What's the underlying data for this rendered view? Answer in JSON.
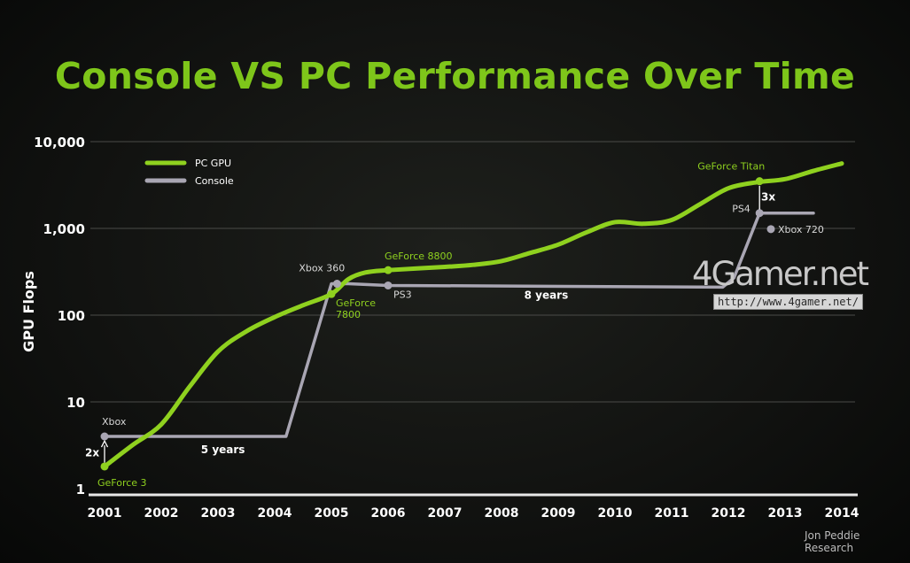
{
  "chart_data": {
    "type": "line",
    "title": "Console VS PC Performance Over Time",
    "ylabel": "GPU Flops",
    "xlabel": "",
    "yscale": "log",
    "ylim": [
      1,
      10000
    ],
    "yticks": [
      "1",
      "10",
      "100",
      "1,000",
      "10,000"
    ],
    "ytick_values": [
      1,
      10,
      100,
      1000,
      10000
    ],
    "xticks": [
      "2001",
      "2002",
      "2003",
      "2004",
      "2005",
      "2006",
      "2007",
      "2008",
      "2009",
      "2010",
      "2011",
      "2012",
      "2013",
      "2014"
    ],
    "grid": true,
    "legend_position": "top-left",
    "series": [
      {
        "name": "PC GPU",
        "color": "#8fd11f",
        "points": [
          [
            2001.0,
            1.8
          ],
          [
            2001.5,
            3.2
          ],
          [
            2002.0,
            5.5
          ],
          [
            2002.5,
            15
          ],
          [
            2003.0,
            38
          ],
          [
            2003.5,
            65
          ],
          [
            2004.0,
            95
          ],
          [
            2004.5,
            130
          ],
          [
            2005.0,
            175
          ],
          [
            2005.3,
            260
          ],
          [
            2005.6,
            310
          ],
          [
            2006.0,
            330
          ],
          [
            2007.0,
            360
          ],
          [
            2007.5,
            380
          ],
          [
            2008.0,
            420
          ],
          [
            2008.5,
            520
          ],
          [
            2009.0,
            650
          ],
          [
            2009.5,
            900
          ],
          [
            2010.0,
            1180
          ],
          [
            2010.5,
            1130
          ],
          [
            2011.0,
            1250
          ],
          [
            2011.5,
            1900
          ],
          [
            2012.0,
            2900
          ],
          [
            2012.5,
            3400
          ],
          [
            2013.0,
            3700
          ],
          [
            2013.5,
            4600
          ],
          [
            2014.0,
            5600
          ]
        ]
      },
      {
        "name": "Console",
        "color": "#a9a6b3",
        "points": [
          [
            2001.0,
            4
          ],
          [
            2004.2,
            4
          ],
          [
            2005.0,
            230
          ],
          [
            2005.3,
            230
          ],
          [
            2006.0,
            220
          ],
          [
            2011.9,
            210
          ],
          [
            2012.1,
            270
          ],
          [
            2012.55,
            1500
          ],
          [
            2013.5,
            1500
          ]
        ]
      }
    ],
    "markers": [
      {
        "series": "PC GPU",
        "x": 2001.0,
        "y": 1.8,
        "label": "GeForce 3"
      },
      {
        "series": "PC GPU",
        "x": 2005.0,
        "y": 175,
        "label": "GeForce 7800"
      },
      {
        "series": "PC GPU",
        "x": 2006.0,
        "y": 330,
        "label": "GeForce 8800"
      },
      {
        "series": "PC GPU",
        "x": 2012.55,
        "y": 3500,
        "label": "GeForce Titan"
      },
      {
        "series": "Console",
        "x": 2001.0,
        "y": 4,
        "label": "Xbox"
      },
      {
        "series": "Console",
        "x": 2005.1,
        "y": 230,
        "label": "Xbox 360"
      },
      {
        "series": "Console",
        "x": 2006.0,
        "y": 220,
        "label": "PS3"
      },
      {
        "series": "Console",
        "x": 2012.55,
        "y": 1500,
        "label": "PS4"
      },
      {
        "series": "Console",
        "x": 2012.75,
        "y": 980,
        "label": "Xbox 720"
      }
    ],
    "annotations": [
      {
        "text": "2x",
        "x": 2001.0,
        "y": 2.6
      },
      {
        "text": "5 years",
        "x": 2002.7,
        "y": 2.8
      },
      {
        "text": "8 years",
        "x": 2008.4,
        "y": 170
      },
      {
        "text": "3x",
        "x": 2012.75,
        "y": 2300
      }
    ]
  },
  "watermark": {
    "logo": "4Gamer.net",
    "url": "http://www.4gamer.net/"
  },
  "source": "Jon Peddie Research"
}
